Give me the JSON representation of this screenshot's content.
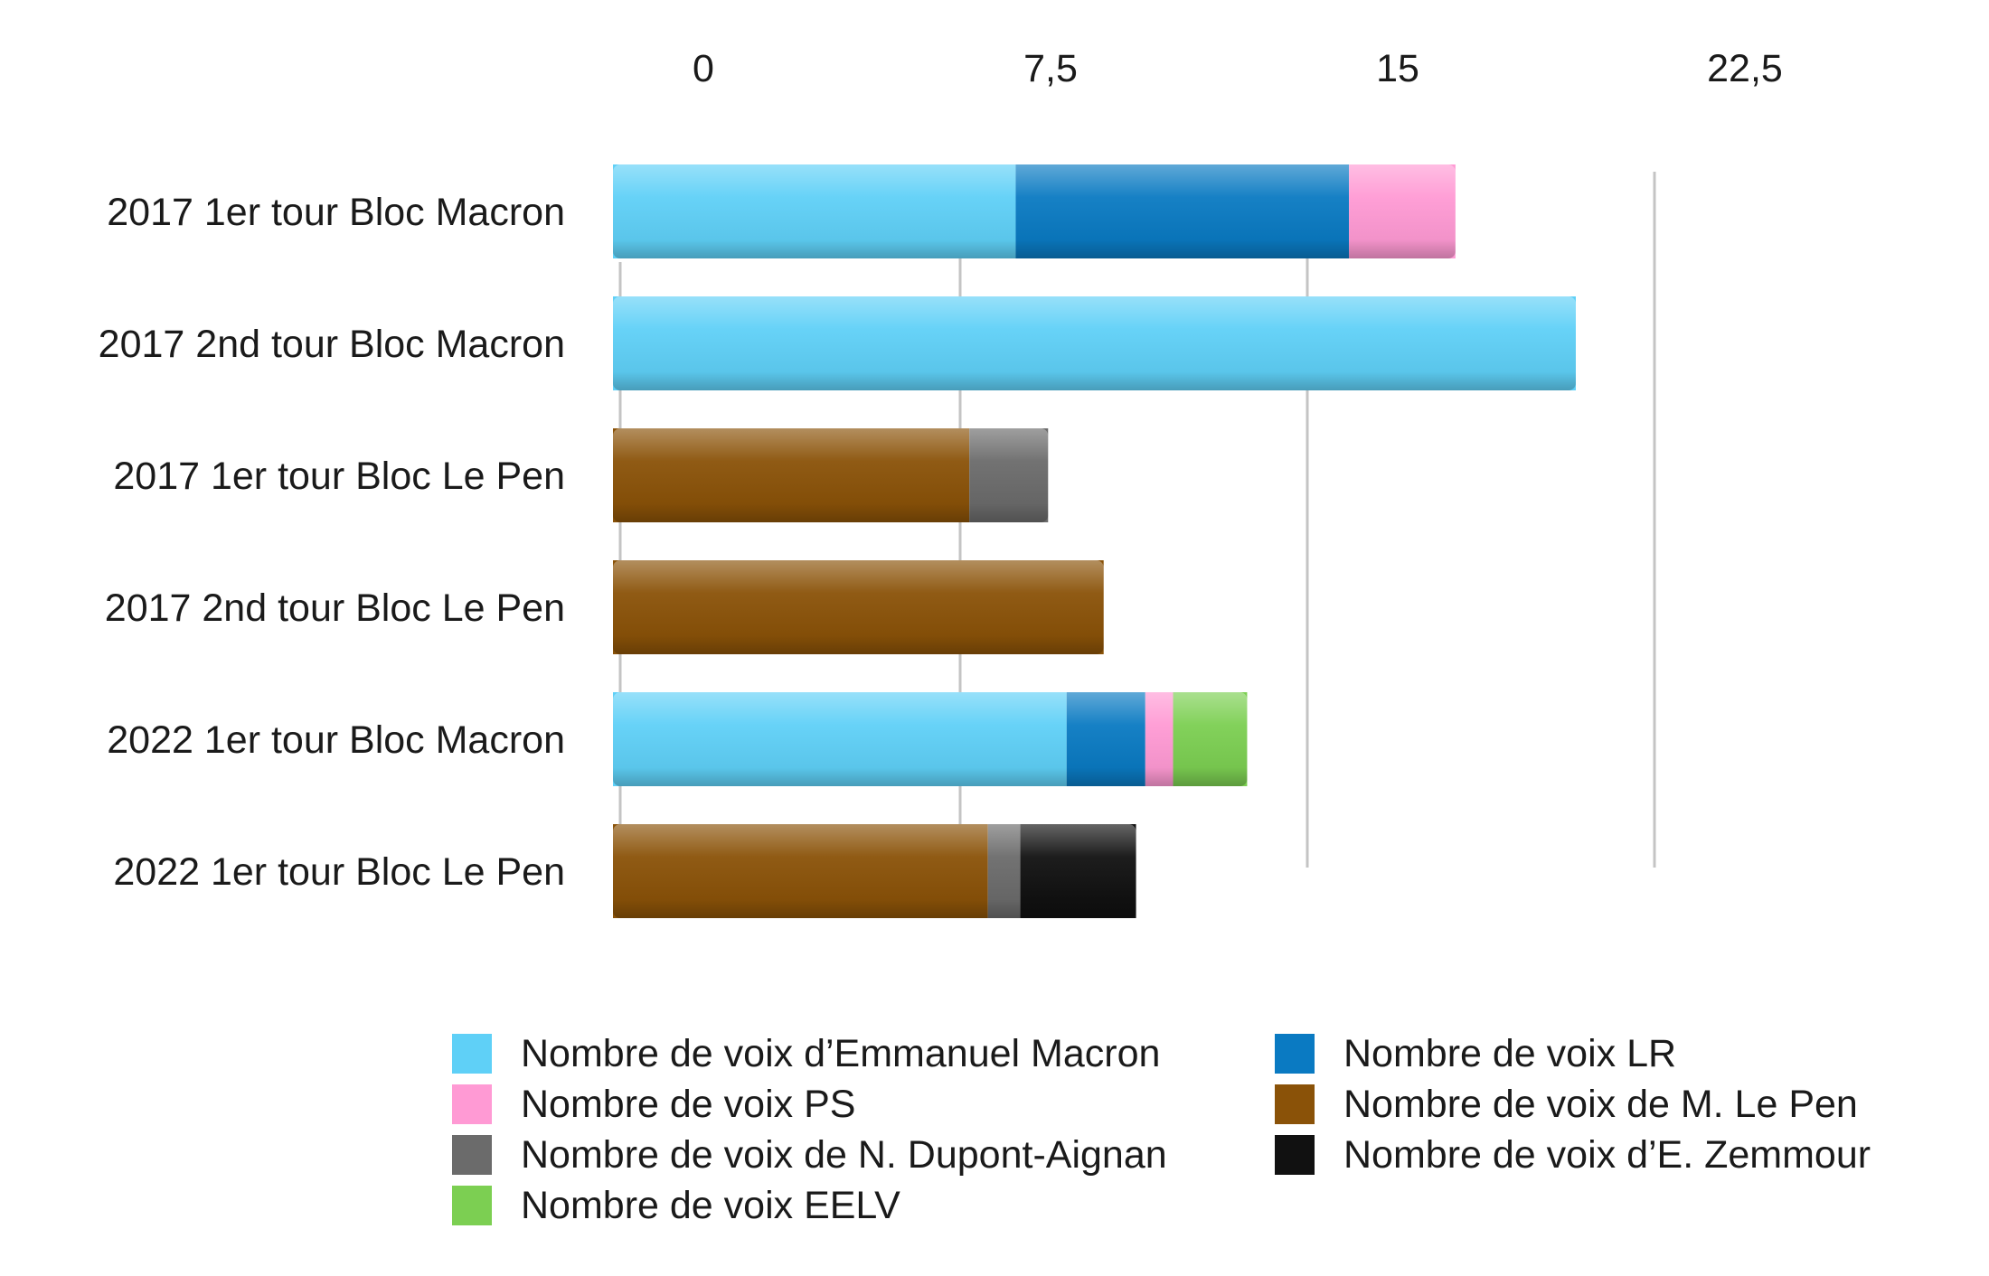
{
  "chart_data": {
    "type": "bar",
    "orientation": "horizontal",
    "stacked": true,
    "title": "",
    "xlabel": "",
    "ylabel": "",
    "xlim": [
      0,
      22.5
    ],
    "x_ticks": [
      "0",
      "7,5",
      "15",
      "22,5"
    ],
    "x_tick_values": [
      0,
      7.5,
      15,
      22.5
    ],
    "grid": true,
    "legend_position": "bottom",
    "categories": [
      "2017 1er tour Bloc Macron",
      "2017 2nd tour Bloc Macron",
      "2017 1er tour Bloc Le Pen",
      "2017 2nd tour Bloc Le Pen",
      "2022 1er tour Bloc Macron",
      "2022 1er tour Bloc Le Pen"
    ],
    "series": [
      {
        "name": "Nombre de voix d’Emmanuel Macron",
        "color": "#5fd0f7",
        "values": [
          8.7,
          20.8,
          0,
          0,
          9.8,
          0
        ]
      },
      {
        "name": "Nombre de voix LR",
        "color": "#0a7ac2",
        "values": [
          7.2,
          0,
          0,
          0,
          1.7,
          0
        ]
      },
      {
        "name": "Nombre de voix PS",
        "color": "#ff9ad4",
        "values": [
          2.3,
          0,
          0,
          0,
          0.6,
          0
        ]
      },
      {
        "name": "Nombre de voix de M. Le Pen",
        "color": "#8a5208",
        "values": [
          0,
          0,
          7.7,
          10.6,
          0,
          8.1
        ]
      },
      {
        "name": "Nombre de voix de N. Dupont-Aignan",
        "color": "#6b6b6b",
        "values": [
          0,
          0,
          1.7,
          0,
          0,
          0.7
        ]
      },
      {
        "name": "Nombre de voix d’E. Zemmour",
        "color": "#111111",
        "values": [
          0,
          0,
          0,
          0,
          0,
          2.5
        ]
      },
      {
        "name": "Nombre de voix EELV",
        "color": "#7ccf52",
        "values": [
          0,
          0,
          0,
          0,
          1.6,
          0
        ]
      }
    ],
    "legend_order": [
      0,
      1,
      2,
      3,
      4,
      5,
      6
    ]
  }
}
